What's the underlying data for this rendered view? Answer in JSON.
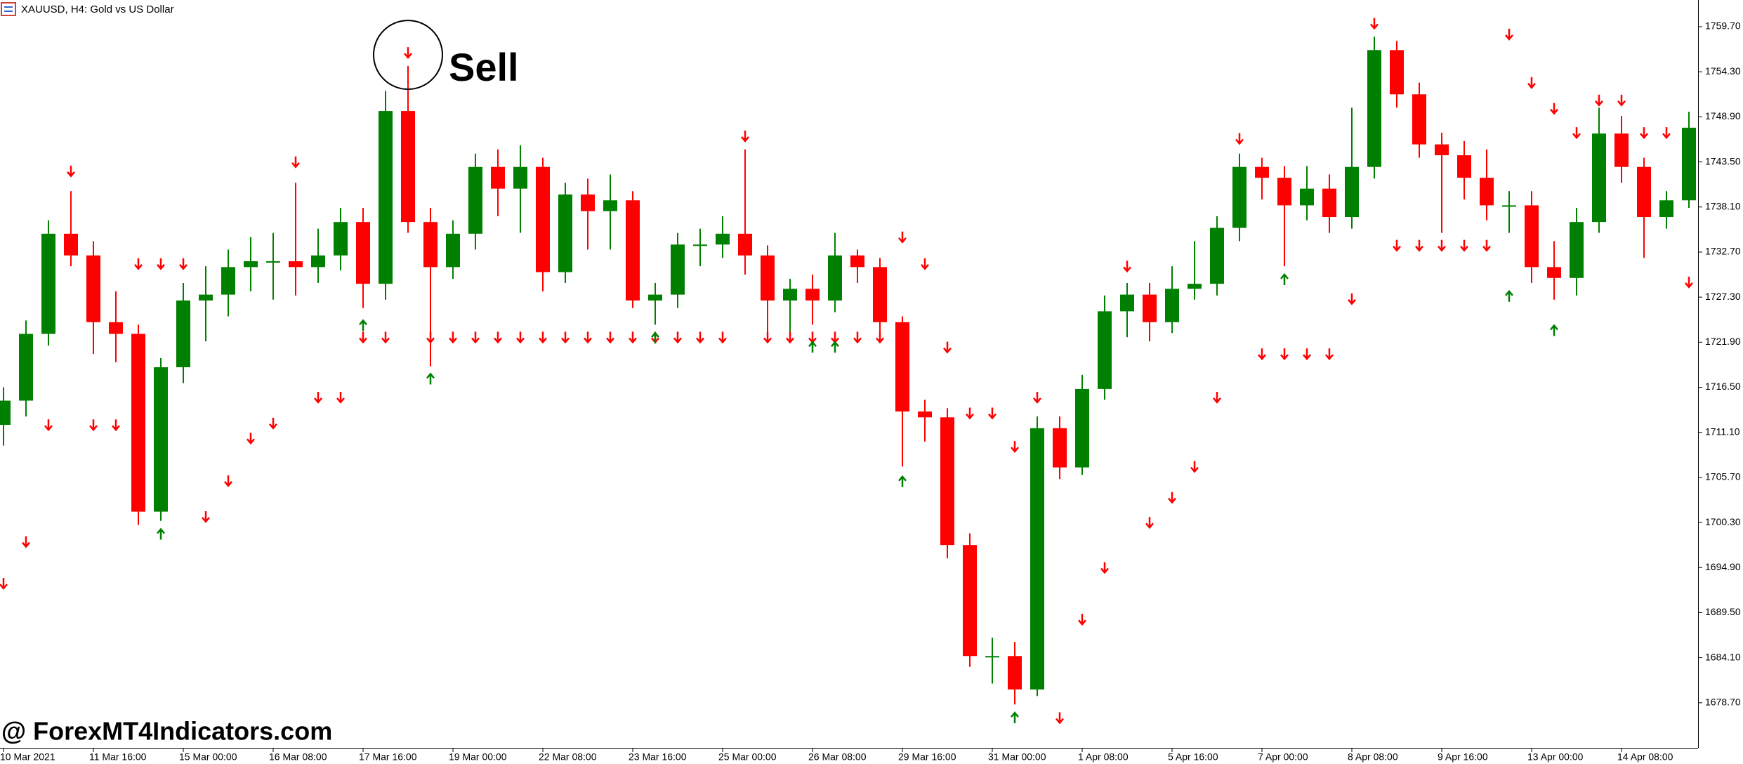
{
  "chart_data": {
    "type": "candlestick",
    "title": "XAUUSD, H4:  Gold vs US Dollar",
    "annotation": "Sell",
    "watermark": "@ ForexMT4Indicators.com",
    "up_color": "#008000",
    "down_color": "#ff0000",
    "ylim": [
      1673.3,
      1762.9
    ],
    "yticks": [
      {
        "value": 1759.7,
        "label": "1759.70"
      },
      {
        "value": 1754.3,
        "label": "1754.30"
      },
      {
        "value": 1748.9,
        "label": "1748.90"
      },
      {
        "value": 1743.5,
        "label": "1743.50"
      },
      {
        "value": 1738.1,
        "label": "1738.10"
      },
      {
        "value": 1732.7,
        "label": "1732.70"
      },
      {
        "value": 1727.3,
        "label": "1727.30"
      },
      {
        "value": 1721.9,
        "label": "1721.90"
      },
      {
        "value": 1716.5,
        "label": "1716.50"
      },
      {
        "value": 1711.1,
        "label": "1711.10"
      },
      {
        "value": 1705.7,
        "label": "1705.70"
      },
      {
        "value": 1700.3,
        "label": "1700.30"
      },
      {
        "value": 1694.9,
        "label": "1694.90"
      },
      {
        "value": 1689.5,
        "label": "1689.50"
      },
      {
        "value": 1684.1,
        "label": "1684.10"
      },
      {
        "value": 1678.7,
        "label": "1678.70"
      }
    ],
    "categories": [
      "10 Mar 2021",
      null,
      null,
      null,
      "11 Mar 16:00",
      null,
      null,
      null,
      "15 Mar 00:00",
      null,
      null,
      null,
      "16 Mar 08:00",
      null,
      null,
      null,
      "17 Mar 16:00",
      null,
      null,
      null,
      "19 Mar 00:00",
      null,
      null,
      null,
      "22 Mar 08:00",
      null,
      null,
      null,
      "23 Mar 16:00",
      null,
      null,
      null,
      "25 Mar 00:00",
      null,
      null,
      null,
      "26 Mar 08:00",
      null,
      null,
      null,
      "29 Mar 16:00",
      null,
      null,
      null,
      "31 Mar 00:00",
      null,
      null,
      null,
      "1 Apr 08:00",
      null,
      null,
      null,
      "5 Apr 16:00",
      null,
      null,
      null,
      "7 Apr 00:00",
      null,
      null,
      null,
      "8 Apr 08:00",
      null,
      null,
      null,
      "9 Apr 16:00",
      null,
      null,
      null,
      "13 Apr 00:00",
      null,
      null,
      null,
      "14 Apr 08:00",
      null,
      null,
      null
    ],
    "open": [
      1712.0,
      1714.9,
      1722.9,
      1734.9,
      1732.3,
      1724.3,
      1722.9,
      1701.6,
      1718.9,
      1726.9,
      1727.6,
      1730.9,
      1731.6,
      1731.6,
      1730.9,
      1732.3,
      1736.3,
      1728.9,
      1749.6,
      1736.3,
      1730.9,
      1734.9,
      1742.9,
      1740.3,
      1742.9,
      1730.3,
      1739.6,
      1737.6,
      1738.9,
      1726.9,
      1727.6,
      1733.6,
      1733.6,
      1734.9,
      1732.3,
      1726.9,
      1728.3,
      1726.9,
      1732.3,
      1730.9,
      1724.3,
      1713.6,
      1712.9,
      1697.6,
      1684.3,
      1684.3,
      1680.3,
      1711.6,
      1706.9,
      1716.3,
      1725.6,
      1727.6,
      1724.3,
      1728.3,
      1728.9,
      1735.6,
      1742.9,
      1741.6,
      1738.3,
      1740.3,
      1736.9,
      1742.9,
      1756.9,
      1751.6,
      1745.6,
      1744.3,
      1741.6,
      1738.3,
      1738.3,
      1730.9,
      1729.6,
      1736.3,
      1746.9,
      1742.9,
      1736.9,
      1738.9
    ],
    "high": [
      1716.5,
      1724.5,
      1736.5,
      1740.0,
      1734.0,
      1728.0,
      1724.0,
      1720.0,
      1729.0,
      1731.0,
      1733.0,
      1734.5,
      1735.0,
      1741.0,
      1735.5,
      1738.0,
      1738.0,
      1752.0,
      1755.0,
      1738.0,
      1736.5,
      1744.5,
      1745.0,
      1745.5,
      1744.0,
      1741.0,
      1741.5,
      1742.0,
      1740.0,
      1729.0,
      1735.0,
      1735.5,
      1737.0,
      1745.0,
      1733.5,
      1729.5,
      1730.0,
      1735.0,
      1733.0,
      1732.0,
      1725.0,
      1715.0,
      1714.0,
      1699.0,
      1686.5,
      1686.0,
      1713.0,
      1713.0,
      1718.0,
      1727.5,
      1729.0,
      1729.0,
      1731.0,
      1734.0,
      1737.0,
      1744.5,
      1744.0,
      1743.0,
      1743.0,
      1742.0,
      1750.0,
      1758.5,
      1758.0,
      1753.0,
      1747.0,
      1746.0,
      1745.0,
      1740.0,
      1740.0,
      1734.0,
      1738.0,
      1750.0,
      1749.0,
      1744.0,
      1740.0,
      1749.5
    ],
    "low": [
      1709.5,
      1713.0,
      1721.5,
      1731.0,
      1720.5,
      1719.5,
      1700.0,
      1700.5,
      1717.0,
      1722.0,
      1725.0,
      1728.0,
      1727.0,
      1727.5,
      1729.0,
      1730.5,
      1726.0,
      1727.0,
      1735.0,
      1719.0,
      1729.5,
      1733.0,
      1737.0,
      1735.0,
      1728.0,
      1729.0,
      1733.0,
      1733.0,
      1726.0,
      1724.0,
      1726.0,
      1731.0,
      1732.0,
      1730.0,
      1723.0,
      1723.0,
      1724.0,
      1725.5,
      1729.0,
      1722.0,
      1707.0,
      1710.0,
      1696.0,
      1683.0,
      1681.0,
      1678.5,
      1679.5,
      1705.5,
      1706.0,
      1715.0,
      1722.5,
      1722.0,
      1723.0,
      1727.0,
      1727.5,
      1734.0,
      1739.0,
      1731.0,
      1736.5,
      1735.0,
      1735.5,
      1741.5,
      1750.0,
      1744.0,
      1735.0,
      1739.0,
      1736.5,
      1735.0,
      1729.0,
      1727.0,
      1727.5,
      1735.0,
      1741.0,
      1732.0,
      1735.5,
      1738.0
    ],
    "close": [
      1714.9,
      1722.9,
      1734.9,
      1732.3,
      1724.3,
      1722.9,
      1701.6,
      1718.9,
      1726.9,
      1727.6,
      1730.9,
      1731.6,
      1731.6,
      1730.9,
      1732.3,
      1736.3,
      1728.9,
      1749.6,
      1736.3,
      1730.9,
      1734.9,
      1742.9,
      1740.3,
      1742.9,
      1730.3,
      1739.6,
      1737.6,
      1738.9,
      1726.9,
      1727.6,
      1733.6,
      1733.6,
      1734.9,
      1732.3,
      1726.9,
      1728.3,
      1726.9,
      1732.3,
      1730.9,
      1724.3,
      1713.6,
      1712.9,
      1697.6,
      1684.3,
      1684.3,
      1680.3,
      1711.6,
      1706.9,
      1716.3,
      1725.6,
      1727.6,
      1724.3,
      1728.3,
      1728.9,
      1735.6,
      1742.9,
      1741.6,
      1738.3,
      1740.3,
      1736.9,
      1742.9,
      1756.9,
      1751.6,
      1745.6,
      1744.3,
      1741.6,
      1738.3,
      1738.3,
      1730.9,
      1729.6,
      1736.3,
      1746.9,
      1742.9,
      1736.9,
      1738.9,
      1747.6
    ],
    "signals": {
      "sell": {
        "color": "#ff0000",
        "x": [
          0,
          1,
          2,
          3,
          4,
          5,
          6,
          7,
          8,
          9,
          10,
          11,
          12,
          13,
          14,
          15,
          16,
          17,
          18,
          19,
          20,
          21,
          22,
          23,
          24,
          25,
          26,
          27,
          28,
          29,
          30,
          31,
          32,
          33,
          34,
          35,
          36,
          37,
          38,
          39,
          40,
          41,
          42,
          43,
          44,
          45,
          46,
          47,
          48,
          49,
          50,
          51,
          52,
          53,
          54,
          55,
          56,
          57,
          58,
          59,
          60,
          61,
          62,
          63,
          64,
          65,
          66,
          67,
          68,
          69,
          70,
          71,
          72,
          73,
          74,
          75
        ],
        "y": [
          1692.9,
          1697.9,
          1711.9,
          1742.3,
          1711.9,
          1711.9,
          1731.2,
          1731.2,
          1731.2,
          1700.9,
          1705.2,
          1710.3,
          1712.1,
          1743.4,
          1715.2,
          1715.2,
          1722.4,
          1722.4,
          1756.5,
          1722.4,
          1722.4,
          1722.4,
          1722.4,
          1722.4,
          1722.4,
          1722.4,
          1722.4,
          1722.4,
          1722.4,
          1722.4,
          1722.4,
          1722.4,
          1722.4,
          1746.5,
          1722.4,
          1722.4,
          1722.4,
          1722.4,
          1722.4,
          1722.4,
          1734.4,
          1731.2,
          1721.2,
          1713.3,
          1713.3,
          1709.3,
          1715.2,
          1676.8,
          1688.6,
          1694.8,
          1730.9,
          1700.2,
          1703.2,
          1706.9,
          1715.2,
          1746.2,
          1720.4,
          1720.4,
          1720.4,
          1720.4,
          1727.0,
          1760.0,
          1733.4,
          1733.4,
          1733.4,
          1733.4,
          1733.4,
          1758.7,
          1752.9,
          1749.8,
          1746.9,
          1750.8,
          1750.8,
          1746.9,
          1746.9,
          1729.0
        ]
      },
      "buy": {
        "color": "#008000",
        "x": [
          7,
          16,
          19,
          29,
          36,
          37,
          40,
          45,
          57,
          67,
          69
        ],
        "y": [
          1699.0,
          1724.0,
          1717.6,
          1722.5,
          1721.4,
          1721.4,
          1705.3,
          1677.0,
          1729.5,
          1727.5,
          1723.4
        ]
      }
    }
  }
}
